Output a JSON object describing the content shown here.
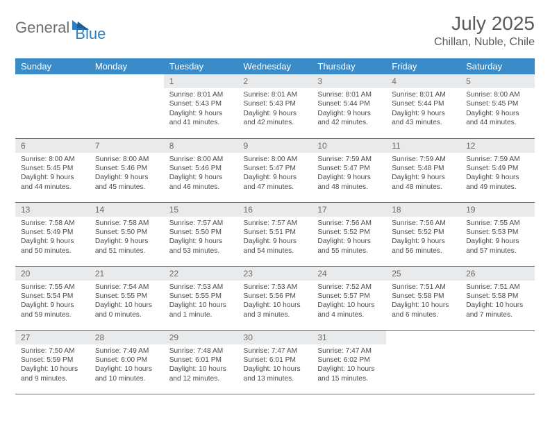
{
  "logo": {
    "part1": "General",
    "part2": "Blue"
  },
  "title": "July 2025",
  "location": "Chillan, Nuble, Chile",
  "colors": {
    "headerBg": "#3b8bc9",
    "headerText": "#ffffff",
    "dayNumBg": "#e9eaeb",
    "dayNumText": "#6a6a6a",
    "bodyText": "#4a4a4a",
    "ruleLine": "#2f7fc0",
    "logoGray": "#6e6e6e",
    "logoBlue": "#2f7fc0"
  },
  "weekdays": [
    "Sunday",
    "Monday",
    "Tuesday",
    "Wednesday",
    "Thursday",
    "Friday",
    "Saturday"
  ],
  "weeks": [
    [
      null,
      null,
      {
        "n": "1",
        "sr": "8:01 AM",
        "ss": "5:43 PM",
        "dl": "9 hours and 41 minutes."
      },
      {
        "n": "2",
        "sr": "8:01 AM",
        "ss": "5:43 PM",
        "dl": "9 hours and 42 minutes."
      },
      {
        "n": "3",
        "sr": "8:01 AM",
        "ss": "5:44 PM",
        "dl": "9 hours and 42 minutes."
      },
      {
        "n": "4",
        "sr": "8:01 AM",
        "ss": "5:44 PM",
        "dl": "9 hours and 43 minutes."
      },
      {
        "n": "5",
        "sr": "8:00 AM",
        "ss": "5:45 PM",
        "dl": "9 hours and 44 minutes."
      }
    ],
    [
      {
        "n": "6",
        "sr": "8:00 AM",
        "ss": "5:45 PM",
        "dl": "9 hours and 44 minutes."
      },
      {
        "n": "7",
        "sr": "8:00 AM",
        "ss": "5:46 PM",
        "dl": "9 hours and 45 minutes."
      },
      {
        "n": "8",
        "sr": "8:00 AM",
        "ss": "5:46 PM",
        "dl": "9 hours and 46 minutes."
      },
      {
        "n": "9",
        "sr": "8:00 AM",
        "ss": "5:47 PM",
        "dl": "9 hours and 47 minutes."
      },
      {
        "n": "10",
        "sr": "7:59 AM",
        "ss": "5:47 PM",
        "dl": "9 hours and 48 minutes."
      },
      {
        "n": "11",
        "sr": "7:59 AM",
        "ss": "5:48 PM",
        "dl": "9 hours and 48 minutes."
      },
      {
        "n": "12",
        "sr": "7:59 AM",
        "ss": "5:49 PM",
        "dl": "9 hours and 49 minutes."
      }
    ],
    [
      {
        "n": "13",
        "sr": "7:58 AM",
        "ss": "5:49 PM",
        "dl": "9 hours and 50 minutes."
      },
      {
        "n": "14",
        "sr": "7:58 AM",
        "ss": "5:50 PM",
        "dl": "9 hours and 51 minutes."
      },
      {
        "n": "15",
        "sr": "7:57 AM",
        "ss": "5:50 PM",
        "dl": "9 hours and 53 minutes."
      },
      {
        "n": "16",
        "sr": "7:57 AM",
        "ss": "5:51 PM",
        "dl": "9 hours and 54 minutes."
      },
      {
        "n": "17",
        "sr": "7:56 AM",
        "ss": "5:52 PM",
        "dl": "9 hours and 55 minutes."
      },
      {
        "n": "18",
        "sr": "7:56 AM",
        "ss": "5:52 PM",
        "dl": "9 hours and 56 minutes."
      },
      {
        "n": "19",
        "sr": "7:55 AM",
        "ss": "5:53 PM",
        "dl": "9 hours and 57 minutes."
      }
    ],
    [
      {
        "n": "20",
        "sr": "7:55 AM",
        "ss": "5:54 PM",
        "dl": "9 hours and 59 minutes."
      },
      {
        "n": "21",
        "sr": "7:54 AM",
        "ss": "5:55 PM",
        "dl": "10 hours and 0 minutes."
      },
      {
        "n": "22",
        "sr": "7:53 AM",
        "ss": "5:55 PM",
        "dl": "10 hours and 1 minute."
      },
      {
        "n": "23",
        "sr": "7:53 AM",
        "ss": "5:56 PM",
        "dl": "10 hours and 3 minutes."
      },
      {
        "n": "24",
        "sr": "7:52 AM",
        "ss": "5:57 PM",
        "dl": "10 hours and 4 minutes."
      },
      {
        "n": "25",
        "sr": "7:51 AM",
        "ss": "5:58 PM",
        "dl": "10 hours and 6 minutes."
      },
      {
        "n": "26",
        "sr": "7:51 AM",
        "ss": "5:58 PM",
        "dl": "10 hours and 7 minutes."
      }
    ],
    [
      {
        "n": "27",
        "sr": "7:50 AM",
        "ss": "5:59 PM",
        "dl": "10 hours and 9 minutes."
      },
      {
        "n": "28",
        "sr": "7:49 AM",
        "ss": "6:00 PM",
        "dl": "10 hours and 10 minutes."
      },
      {
        "n": "29",
        "sr": "7:48 AM",
        "ss": "6:01 PM",
        "dl": "10 hours and 12 minutes."
      },
      {
        "n": "30",
        "sr": "7:47 AM",
        "ss": "6:01 PM",
        "dl": "10 hours and 13 minutes."
      },
      {
        "n": "31",
        "sr": "7:47 AM",
        "ss": "6:02 PM",
        "dl": "10 hours and 15 minutes."
      },
      null,
      null
    ]
  ],
  "labels": {
    "sunrise": "Sunrise: ",
    "sunset": "Sunset: ",
    "daylight": "Daylight: "
  }
}
